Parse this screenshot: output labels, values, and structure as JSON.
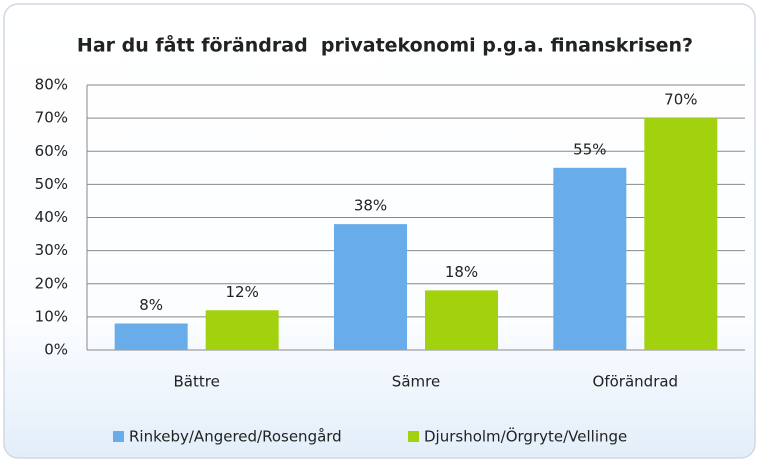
{
  "chart_data": {
    "type": "bar",
    "title": "Har du fått förändrad  privatekonomi p.g.a. finanskrisen?",
    "categories": [
      "Bättre",
      "Sämre",
      "Oförändrad"
    ],
    "series": [
      {
        "name": "Rinkeby/Angered/Rosengård",
        "color": "#69acea",
        "values": [
          8,
          38,
          55
        ],
        "value_labels": [
          "8%",
          "38%",
          "55%"
        ]
      },
      {
        "name": "Djursholm/Örgryte/Vellinge",
        "color": "#a2d20e",
        "values": [
          12,
          18,
          70
        ],
        "value_labels": [
          "12%",
          "18%",
          "70%"
        ]
      }
    ],
    "ylim": [
      0,
      80
    ],
    "yticks": [
      {
        "value": 0,
        "label": "0%"
      },
      {
        "value": 10,
        "label": "10%"
      },
      {
        "value": 20,
        "label": "20%"
      },
      {
        "value": 30,
        "label": "30%"
      },
      {
        "value": 40,
        "label": "40%"
      },
      {
        "value": 50,
        "label": "50%"
      },
      {
        "value": 60,
        "label": "60%"
      },
      {
        "value": 70,
        "label": "70%"
      },
      {
        "value": 80,
        "label": "80%"
      }
    ],
    "grid": true,
    "legend": "bottom"
  }
}
